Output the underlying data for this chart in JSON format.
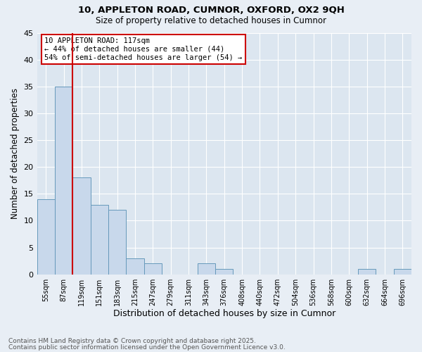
{
  "title1": "10, APPLETON ROAD, CUMNOR, OXFORD, OX2 9QH",
  "title2": "Size of property relative to detached houses in Cumnor",
  "xlabel": "Distribution of detached houses by size in Cumnor",
  "ylabel": "Number of detached properties",
  "bar_color": "#c8d8eb",
  "bar_edge_color": "#6699bb",
  "categories": [
    "55sqm",
    "87sqm",
    "119sqm",
    "151sqm",
    "183sqm",
    "215sqm",
    "247sqm",
    "279sqm",
    "311sqm",
    "343sqm",
    "376sqm",
    "408sqm",
    "440sqm",
    "472sqm",
    "504sqm",
    "536sqm",
    "568sqm",
    "600sqm",
    "632sqm",
    "664sqm",
    "696sqm"
  ],
  "values": [
    14,
    35,
    18,
    13,
    12,
    3,
    2,
    0,
    0,
    2,
    1,
    0,
    0,
    0,
    0,
    0,
    0,
    0,
    1,
    0,
    1
  ],
  "vline_x": 1.5,
  "vline_color": "#cc0000",
  "annotation_text": "10 APPLETON ROAD: 117sqm\n← 44% of detached houses are smaller (44)\n54% of semi-detached houses are larger (54) →",
  "annotation_box_color": "white",
  "annotation_edge_color": "#cc0000",
  "ylim": [
    0,
    45
  ],
  "yticks": [
    0,
    5,
    10,
    15,
    20,
    25,
    30,
    35,
    40,
    45
  ],
  "footer1": "Contains HM Land Registry data © Crown copyright and database right 2025.",
  "footer2": "Contains public sector information licensed under the Open Government Licence v3.0.",
  "bg_color": "#e8eef5",
  "plot_bg_color": "#dce6f0",
  "grid_color": "white",
  "title_fontsize": 9.5,
  "subtitle_fontsize": 8.5
}
